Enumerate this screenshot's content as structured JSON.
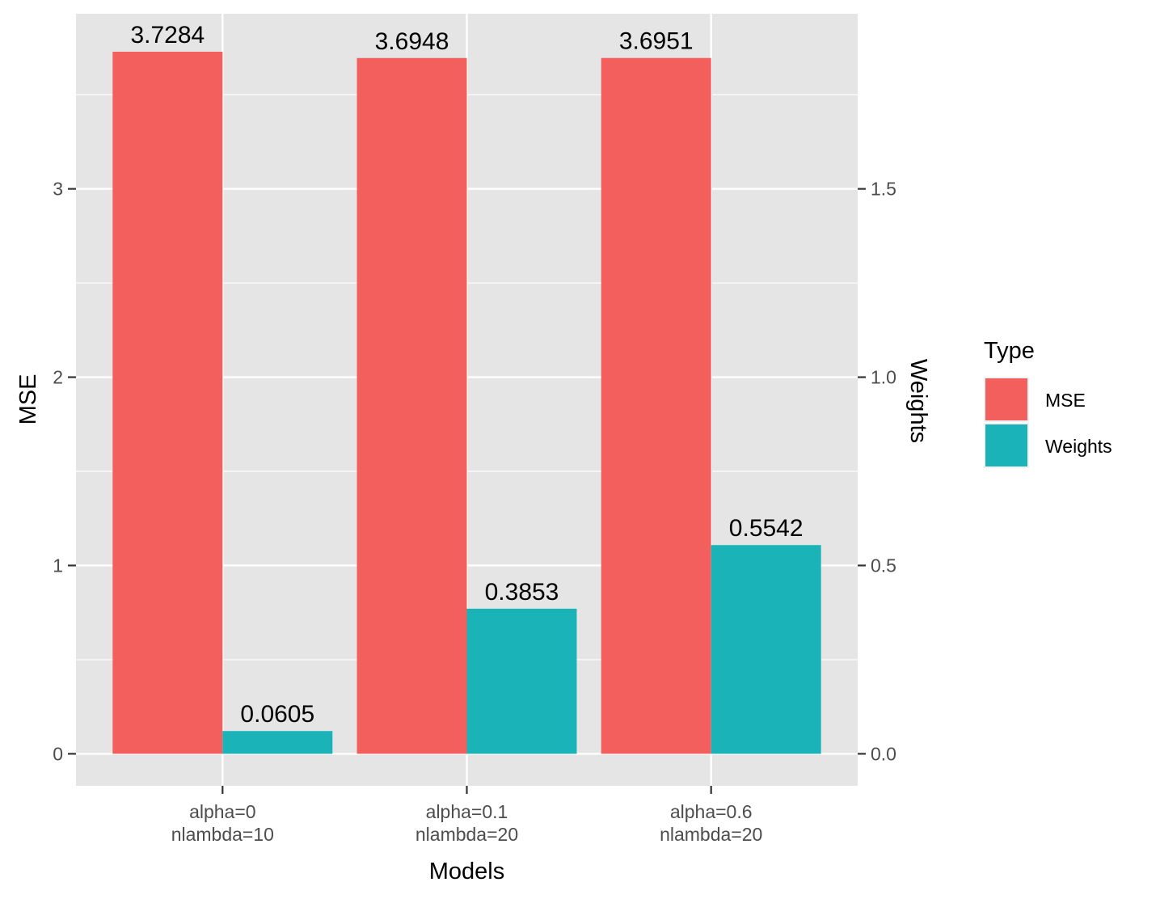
{
  "chart_data": {
    "type": "bar",
    "categories": [
      [
        "alpha=0",
        "nlambda=10"
      ],
      [
        "alpha=0.1",
        "nlambda=20"
      ],
      [
        "alpha=0.6",
        "nlambda=20"
      ]
    ],
    "series": [
      {
        "name": "MSE",
        "axis": "left",
        "values": [
          3.7284,
          3.6948,
          3.6951
        ],
        "labels": [
          "3.7284",
          "3.6948",
          "3.6951"
        ],
        "color": "#F25F5C"
      },
      {
        "name": "Weights",
        "axis": "right",
        "values": [
          0.0605,
          0.3853,
          0.5542
        ],
        "labels": [
          "0.0605",
          "0.3853",
          "0.5542"
        ],
        "color": "#19B3B8"
      }
    ],
    "xlabel": "Models",
    "ylabel": "MSE",
    "ylabel_right": "Weights",
    "ylim": [
      -0.17,
      3.93
    ],
    "ylim_right": [
      -0.085,
      1.965
    ],
    "yticks": [
      "0",
      "1",
      "2",
      "3"
    ],
    "yticks_values": [
      0,
      1,
      2,
      3
    ],
    "yticks_right": [
      "0.0",
      "0.5",
      "1.0",
      "1.5"
    ],
    "yticks_right_values": [
      0,
      0.5,
      1.0,
      1.5
    ],
    "legend": {
      "title": "Type",
      "position": "right"
    },
    "grid": true,
    "panel_background": "#E5E5E5",
    "grid_color": "#FFFFFF"
  }
}
